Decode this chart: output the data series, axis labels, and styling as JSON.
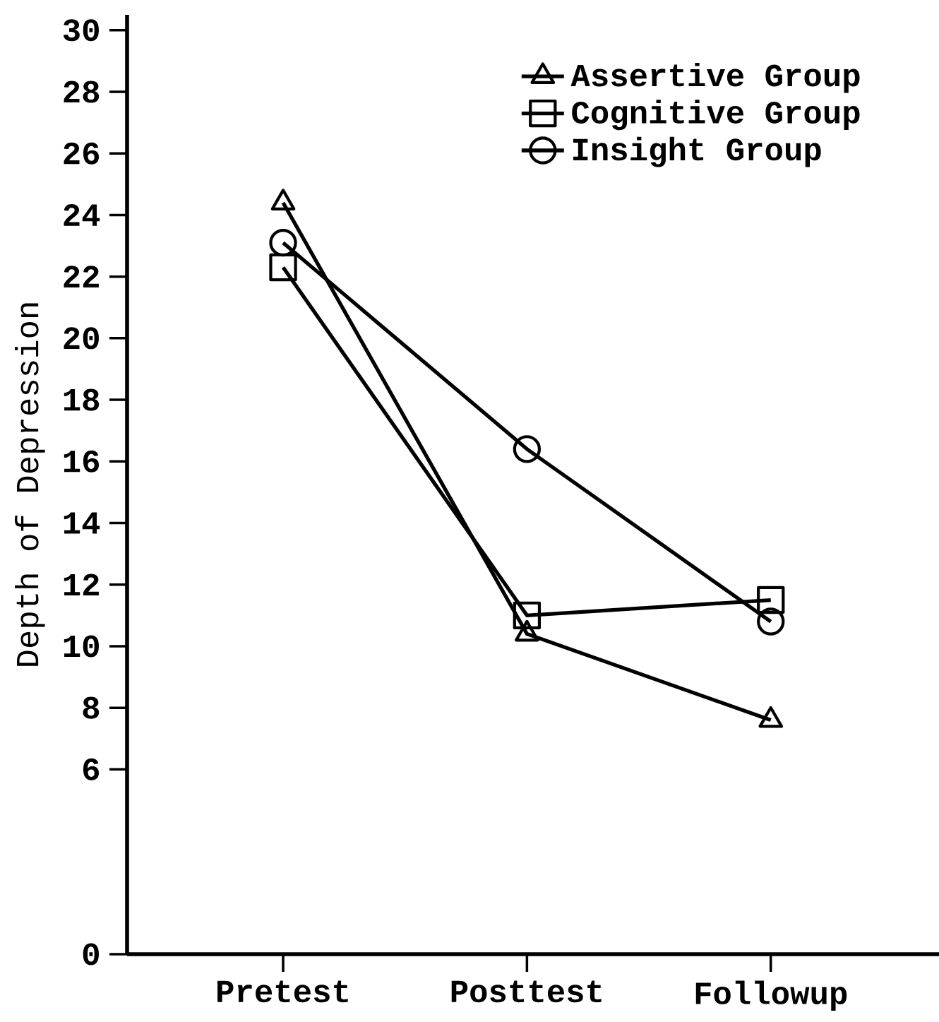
{
  "chart_data": {
    "type": "line",
    "ylabel": "Depth of Depression",
    "categories": [
      "Pretest",
      "Posttest",
      "Followup"
    ],
    "ylim": [
      0,
      30.5
    ],
    "yticks": [
      0,
      6,
      8,
      10,
      12,
      14,
      16,
      18,
      20,
      22,
      24,
      26,
      28,
      30
    ],
    "series": [
      {
        "name": "Assertive Group",
        "color": "#000000",
        "marker": "triangle",
        "values": [
          24.4,
          10.4,
          7.6
        ]
      },
      {
        "name": "Cognitive Group",
        "color": "#000000",
        "marker": "square",
        "values": [
          22.3,
          11.0,
          11.5
        ]
      },
      {
        "name": "Insight Group",
        "color": "#000000",
        "marker": "circle",
        "values": [
          23.1,
          16.4,
          10.8
        ]
      }
    ],
    "legend": "top right",
    "grid": false,
    "line_style": "solid"
  }
}
